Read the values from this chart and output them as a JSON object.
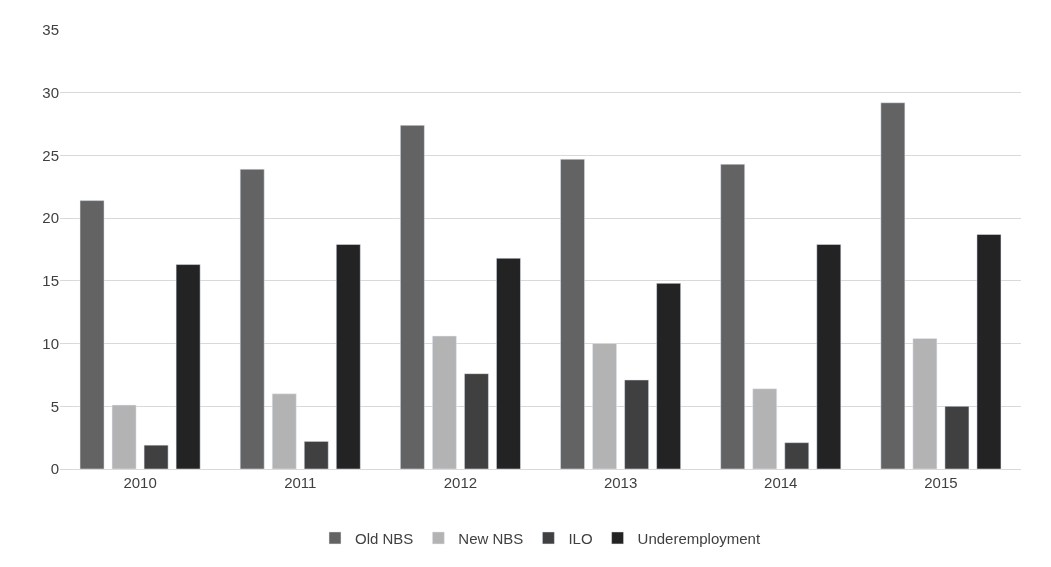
{
  "chart_data": {
    "type": "bar",
    "categories": [
      "2010",
      "2011",
      "2012",
      "2013",
      "2014",
      "2015"
    ],
    "series": [
      {
        "name": "Old NBS",
        "color": "#636363",
        "values": [
          21.4,
          23.9,
          27.4,
          24.7,
          24.3,
          29.2
        ]
      },
      {
        "name": "New NBS",
        "color": "#b3b3b3",
        "values": [
          5.1,
          6.0,
          10.6,
          10.0,
          6.4,
          10.4
        ]
      },
      {
        "name": "ILO",
        "color": "#404040",
        "values": [
          1.9,
          2.2,
          7.6,
          7.1,
          2.1,
          5.0
        ]
      },
      {
        "name": "Underemployment",
        "color": "#232323",
        "values": [
          16.3,
          17.9,
          16.8,
          14.8,
          17.9,
          18.7
        ]
      }
    ],
    "ylim": [
      0,
      35
    ],
    "yticks": [
      0,
      5,
      10,
      15,
      20,
      25,
      30,
      35
    ],
    "grid": "y",
    "legend": "bottom"
  }
}
